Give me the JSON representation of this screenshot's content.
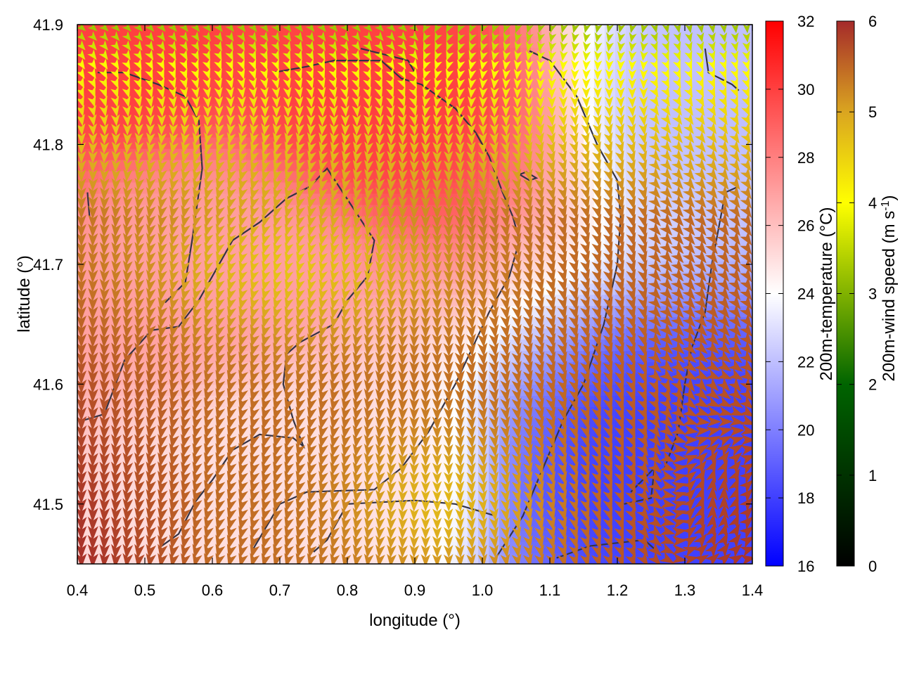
{
  "chart_data": {
    "type": "heatmap",
    "xlabel": "longitude (°)",
    "ylabel": "latitude (°)",
    "xlim": [
      0.4,
      1.4
    ],
    "ylim": [
      41.45,
      41.9
    ],
    "xticks": [
      "0.4",
      "0.5",
      "0.6",
      "0.7",
      "0.8",
      "0.9",
      "1.0",
      "1.1",
      "1.2",
      "1.3",
      "1.4"
    ],
    "yticks": [
      "41.5",
      "41.6",
      "41.7",
      "41.8",
      "41.9"
    ],
    "temperature_colorbar": {
      "label": "200m-temperature (°C)",
      "range": [
        16,
        32
      ],
      "ticks": [
        "16",
        "18",
        "20",
        "22",
        "24",
        "26",
        "28",
        "30",
        "32"
      ],
      "colors": [
        "#0000ff",
        "#ffffff",
        "#ff0000"
      ]
    },
    "wind_colorbar": {
      "label_main": "200m-wind speed (m s",
      "label_sup": "-1",
      "label_end": ")",
      "range": [
        0,
        6
      ],
      "ticks": [
        "0",
        "1",
        "2",
        "3",
        "4",
        "5",
        "6"
      ],
      "colors": [
        "#000000",
        "#006400",
        "#ffff00",
        "#daa520",
        "#a52a2a"
      ]
    },
    "temperature_field_centers": [
      {
        "lon": 0.45,
        "lat": 41.88,
        "temp": 30
      },
      {
        "lon": 0.85,
        "lat": 41.84,
        "temp": 30
      },
      {
        "lon": 0.6,
        "lat": 41.7,
        "temp": 27
      },
      {
        "lon": 0.72,
        "lat": 41.52,
        "temp": 25
      },
      {
        "lon": 1.3,
        "lat": 41.52,
        "temp": 18
      },
      {
        "lon": 1.38,
        "lat": 41.85,
        "temp": 22
      }
    ],
    "wind_field_notes": "Wind speed ~2-3 m/s in the north (green), ~4 m/s band across the middle (yellow), ~5-6 m/s south and east (brown); arrows point mostly southward, turning northward near 1.35°E, 41.5°N."
  }
}
